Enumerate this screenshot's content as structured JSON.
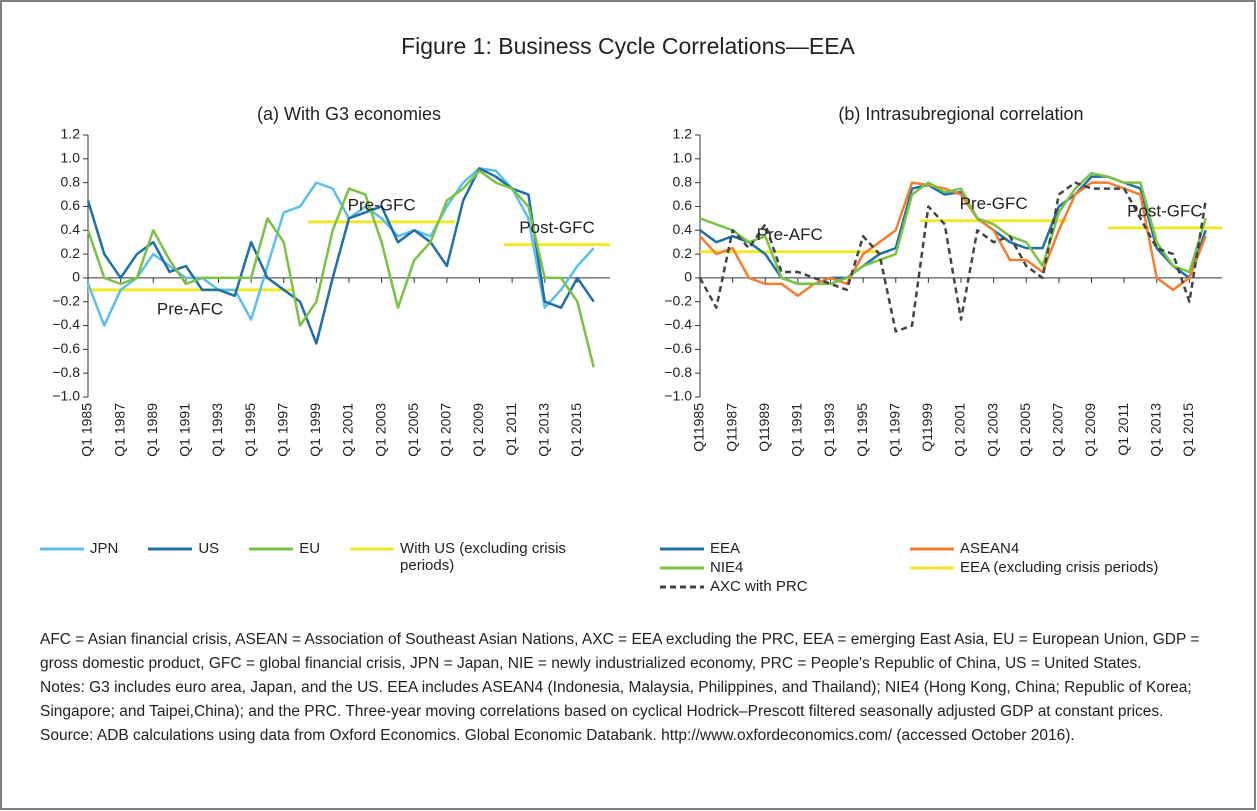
{
  "title": "Figure 1: Business Cycle Correlations—EEA",
  "chart_data": [
    {
      "type": "line",
      "title": "(a) With G3 economies",
      "x": [
        1985,
        1986,
        1987,
        1988,
        1989,
        1990,
        1991,
        1992,
        1993,
        1994,
        1995,
        1996,
        1997,
        1998,
        1999,
        2000,
        2001,
        2002,
        2003,
        2004,
        2005,
        2006,
        2007,
        2008,
        2009,
        2010,
        2011,
        2012,
        2013,
        2014,
        2015,
        2016
      ],
      "xlim": [
        1985,
        2017
      ],
      "xticks": [
        {
          "value": 1985,
          "label": "Q1 1985"
        },
        {
          "value": 1987,
          "label": "Q1 1987"
        },
        {
          "value": 1989,
          "label": "Q1 1989"
        },
        {
          "value": 1991,
          "label": "Q1 1991"
        },
        {
          "value": 1993,
          "label": "Q1 1993"
        },
        {
          "value": 1995,
          "label": "Q1 1995"
        },
        {
          "value": 1997,
          "label": "Q1 1997"
        },
        {
          "value": 1999,
          "label": "Q1 1999"
        },
        {
          "value": 2001,
          "label": "Q1 2001"
        },
        {
          "value": 2003,
          "label": "Q1 2003"
        },
        {
          "value": 2005,
          "label": "Q1 2005"
        },
        {
          "value": 2007,
          "label": "Q1 2007"
        },
        {
          "value": 2009,
          "label": "Q1 2009"
        },
        {
          "value": 2011,
          "label": "Q1 2011"
        },
        {
          "value": 2013,
          "label": "Q1 2013"
        },
        {
          "value": 2015,
          "label": "Q1 2015"
        }
      ],
      "ylim": [
        -1,
        1.2
      ],
      "yticks": [
        {
          "value": -1,
          "label": "−1.0"
        },
        {
          "value": -0.8,
          "label": "−0.8"
        },
        {
          "value": -0.6,
          "label": "−0.6"
        },
        {
          "value": -0.4,
          "label": "−0.4"
        },
        {
          "value": -0.2,
          "label": "−0.2"
        },
        0,
        0.2,
        0.4,
        0.6,
        {
          "value": 0.8,
          "label": "0.8"
        },
        {
          "value": 1,
          "label": "1.0"
        },
        1.2
      ],
      "series": [
        {
          "name": "JPN",
          "color": "#5bc0eb",
          "values": [
            -0.05,
            -0.4,
            -0.1,
            0.0,
            0.2,
            0.1,
            0.0,
            0.0,
            -0.1,
            -0.1,
            -0.35,
            0.1,
            0.55,
            0.6,
            0.8,
            0.75,
            0.5,
            0.6,
            0.5,
            0.35,
            0.4,
            0.35,
            0.6,
            0.8,
            0.92,
            0.9,
            0.75,
            0.5,
            -0.25,
            -0.1,
            0.1,
            0.25
          ]
        },
        {
          "name": "US",
          "color": "#1f6fa8",
          "values": [
            0.65,
            0.2,
            0.0,
            0.2,
            0.3,
            0.05,
            0.1,
            -0.1,
            -0.1,
            -0.15,
            0.3,
            0.0,
            -0.1,
            -0.2,
            -0.55,
            0.0,
            0.5,
            0.55,
            0.6,
            0.3,
            0.4,
            0.3,
            0.1,
            0.65,
            0.92,
            0.85,
            0.75,
            0.7,
            -0.2,
            -0.25,
            0.0,
            -0.2
          ]
        },
        {
          "name": "EU",
          "color": "#7cc242",
          "values": [
            0.4,
            0.0,
            -0.05,
            0.0,
            0.4,
            0.15,
            -0.05,
            0.0,
            0.0,
            0.0,
            0.0,
            0.5,
            0.3,
            -0.4,
            -0.2,
            0.4,
            0.75,
            0.7,
            0.3,
            -0.25,
            0.15,
            0.3,
            0.65,
            0.75,
            0.9,
            0.8,
            0.75,
            0.6,
            0.0,
            0.0,
            -0.2,
            -0.75
          ]
        }
      ],
      "segments_series": {
        "name": "With US (excluding crisis periods)",
        "color": "#f2e82a",
        "segments": [
          {
            "label": "Pre-AFC",
            "label_position": "below",
            "x": [
              1985,
              1997.5
            ],
            "value": -0.1
          },
          {
            "label": "Pre-GFC",
            "label_position": "above",
            "x": [
              1998.5,
              2007.5
            ],
            "value": 0.47
          },
          {
            "label": "Post-GFC",
            "label_position": "above",
            "x": [
              2010.5,
              2017
            ],
            "value": 0.28
          }
        ]
      }
    },
    {
      "type": "line",
      "title": "(b) Intrasubregional correlation",
      "x": [
        1985,
        1986,
        1987,
        1988,
        1989,
        1990,
        1991,
        1992,
        1993,
        1994,
        1995,
        1996,
        1997,
        1998,
        1999,
        2000,
        2001,
        2002,
        2003,
        2004,
        2005,
        2006,
        2007,
        2008,
        2009,
        2010,
        2011,
        2012,
        2013,
        2014,
        2015,
        2016
      ],
      "xlim": [
        1985,
        2017
      ],
      "xticks": [
        {
          "value": 1985,
          "label": "Q11985"
        },
        {
          "value": 1987,
          "label": "Q11987"
        },
        {
          "value": 1989,
          "label": "Q11989"
        },
        {
          "value": 1991,
          "label": "Q1 1991"
        },
        {
          "value": 1993,
          "label": "Q1 1993"
        },
        {
          "value": 1995,
          "label": "Q1 1995"
        },
        {
          "value": 1997,
          "label": "Q1 1997"
        },
        {
          "value": 1999,
          "label": "Q11999"
        },
        {
          "value": 2001,
          "label": "Q1 2001"
        },
        {
          "value": 2003,
          "label": "Q1 2003"
        },
        {
          "value": 2005,
          "label": "Q1 2005"
        },
        {
          "value": 2007,
          "label": "Q1 2007"
        },
        {
          "value": 2009,
          "label": "Q1 2009"
        },
        {
          "value": 2011,
          "label": "Q1 2011"
        },
        {
          "value": 2013,
          "label": "Q1 2013"
        },
        {
          "value": 2015,
          "label": "Q1 2015"
        }
      ],
      "ylim": [
        -1,
        1.2
      ],
      "yticks": [
        {
          "value": -1,
          "label": "−1.0"
        },
        {
          "value": -0.8,
          "label": "−0.8"
        },
        {
          "value": -0.6,
          "label": "−0.6"
        },
        {
          "value": -0.4,
          "label": "−0.4"
        },
        {
          "value": -0.2,
          "label": "−0.2"
        },
        0,
        0.2,
        0.4,
        0.6,
        {
          "value": 0.8,
          "label": "0.8"
        },
        {
          "value": 1,
          "label": "1.0"
        },
        1.2
      ],
      "series": [
        {
          "name": "EEA",
          "color": "#1f6fa8",
          "values": [
            0.4,
            0.3,
            0.35,
            0.3,
            0.2,
            0.0,
            -0.05,
            -0.05,
            0.0,
            0.0,
            0.1,
            0.2,
            0.25,
            0.75,
            0.78,
            0.7,
            0.72,
            0.5,
            0.4,
            0.3,
            0.25,
            0.25,
            0.6,
            0.7,
            0.85,
            0.85,
            0.8,
            0.75,
            0.25,
            0.1,
            0.0,
            0.4
          ]
        },
        {
          "name": "ASEAN4",
          "color": "#f47d30",
          "values": [
            0.35,
            0.2,
            0.25,
            0.0,
            -0.05,
            -0.05,
            -0.15,
            -0.05,
            0.0,
            -0.05,
            0.2,
            0.3,
            0.4,
            0.8,
            0.78,
            0.75,
            0.7,
            0.5,
            0.4,
            0.15,
            0.15,
            0.05,
            0.4,
            0.7,
            0.8,
            0.8,
            0.75,
            0.7,
            0.0,
            -0.1,
            0.0,
            0.35
          ]
        },
        {
          "name": "NIE4",
          "color": "#7cc242",
          "values": [
            0.5,
            0.45,
            0.4,
            0.3,
            0.35,
            0.0,
            -0.05,
            -0.05,
            -0.05,
            0.0,
            0.1,
            0.15,
            0.2,
            0.7,
            0.8,
            0.72,
            0.75,
            0.5,
            0.45,
            0.35,
            0.3,
            0.1,
            0.55,
            0.75,
            0.88,
            0.85,
            0.8,
            0.8,
            0.3,
            0.1,
            0.05,
            0.5
          ]
        },
        {
          "name": "AXC with PRC",
          "color": "#444444",
          "dash": true,
          "values": [
            0.0,
            -0.25,
            0.4,
            0.25,
            0.45,
            0.05,
            0.05,
            0.0,
            -0.05,
            -0.1,
            0.35,
            0.2,
            -0.45,
            -0.4,
            0.6,
            0.45,
            -0.35,
            0.4,
            0.3,
            0.35,
            0.1,
            0.0,
            0.7,
            0.8,
            0.75,
            0.75,
            0.75,
            0.5,
            0.25,
            0.2,
            -0.2,
            0.65
          ]
        }
      ],
      "segments_series": {
        "name": "EEA (excluding crisis periods)",
        "color": "#f2e82a",
        "segments": [
          {
            "label": "Pre-AFC",
            "label_position": "above",
            "x": [
              1985,
              1996
            ],
            "value": 0.22
          },
          {
            "label": "Pre-GFC",
            "label_position": "above",
            "x": [
              1998.5,
              2007.5
            ],
            "value": 0.48
          },
          {
            "label": "Post-GFC",
            "label_position": "above",
            "x": [
              2010,
              2017
            ],
            "value": 0.42
          }
        ]
      }
    }
  ],
  "notes": [
    "AFC = Asian financial crisis, ASEAN = Association of Southeast Asian Nations, AXC = EEA excluding the PRC, EEA = emerging East Asia, EU = European Union, GDP = gross domestic product, GFC = global financial crisis, JPN = Japan, NIE = newly industrialized economy, PRC = People's Republic of China, US = United States.",
    "Notes: G3 includes euro area, Japan, and the US. EEA includes ASEAN4 (Indonesia, Malaysia, Philippines, and Thailand); NIE4 (Hong Kong, China; Republic of Korea; Singapore; and Taipei,China); and the PRC. Three-year moving correlations based on cyclical Hodrick–Prescott filtered seasonally adjusted GDP at constant prices.",
    "Source: ADB calculations using data from Oxford Economics. Global Economic Databank.  http://www.oxfordeconomics.com/ (accessed October 2016)."
  ]
}
